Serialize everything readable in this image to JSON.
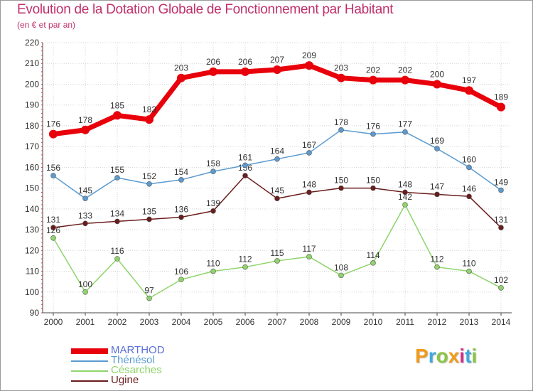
{
  "title": "Evolution de la Dotation Globale de Fonctionnement par Habitant",
  "subtitle": "(en € et par an)",
  "logo_text": "Proxiti",
  "chart_data": {
    "type": "line",
    "categories": [
      "2000",
      "2001",
      "2002",
      "2003",
      "2004",
      "2005",
      "2006",
      "2007",
      "2008",
      "2009",
      "2010",
      "2011",
      "2012",
      "2013",
      "2014"
    ],
    "ylim": [
      90,
      220
    ],
    "yticks": [
      90,
      100,
      110,
      120,
      130,
      140,
      150,
      160,
      170,
      180,
      190,
      200,
      210,
      220
    ],
    "grid": true,
    "legend_position": "bottom-left",
    "series": [
      {
        "name": "MARTHOD",
        "color": "#e8000b",
        "values": [
          176,
          178,
          185,
          183,
          203,
          206,
          206,
          207,
          209,
          203,
          202,
          202,
          200,
          197,
          189
        ]
      },
      {
        "name": "Thénésol",
        "color": "#5b9bd1",
        "values": [
          156,
          145,
          155,
          152,
          154,
          158,
          161,
          164,
          167,
          178,
          176,
          177,
          169,
          160,
          149
        ]
      },
      {
        "name": "Césarches",
        "color": "#8fd46a",
        "values": [
          126,
          100,
          116,
          97,
          106,
          110,
          112,
          115,
          117,
          108,
          114,
          142,
          112,
          110,
          102
        ]
      },
      {
        "name": "Ugine",
        "color": "#6b1c1c",
        "values": [
          131,
          133,
          134,
          135,
          136,
          139,
          156,
          145,
          148,
          150,
          150,
          148,
          147,
          146,
          131
        ]
      }
    ]
  }
}
